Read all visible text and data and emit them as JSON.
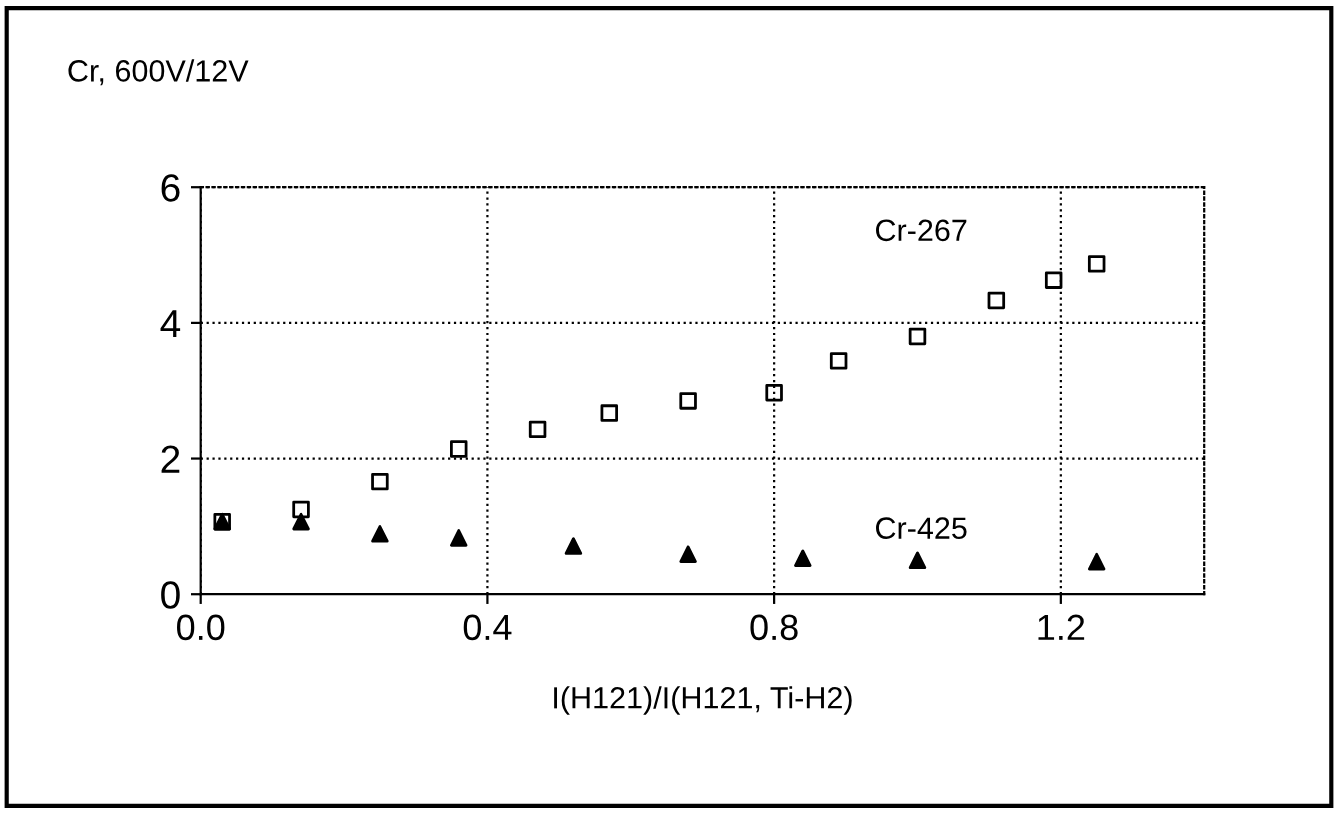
{
  "chart_data": {
    "type": "scatter",
    "title": "Cr, 600V/12V",
    "xlabel": "I(H121)/I(H121, Ti-H2)",
    "xlim": [
      0,
      1.4
    ],
    "xticks": [
      {
        "value": 0,
        "label": "0.0"
      },
      0.4,
      0.8,
      1.2
    ],
    "ylim": [
      0,
      6
    ],
    "yticks": [
      0,
      2,
      4,
      6
    ],
    "grid": true,
    "legend": false,
    "series": [
      {
        "name": "Cr-267",
        "color": "#000000",
        "marker": "square",
        "x": [
          0.03,
          0.14,
          0.25,
          0.36,
          0.47,
          0.57,
          0.68,
          0.8,
          0.89,
          1.0,
          1.11,
          1.19,
          1.25
        ],
        "values": [
          1.07,
          1.25,
          1.66,
          2.14,
          2.43,
          2.67,
          2.85,
          2.97,
          3.44,
          3.8,
          4.33,
          4.63,
          4.87
        ]
      },
      {
        "name": "Cr-425",
        "color": "#000000",
        "marker": "triangle",
        "x": [
          0.03,
          0.14,
          0.25,
          0.36,
          0.52,
          0.68,
          0.84,
          1.0,
          1.25
        ],
        "values": [
          1.07,
          1.07,
          0.89,
          0.83,
          0.71,
          0.59,
          0.53,
          0.5,
          0.48
        ]
      }
    ]
  }
}
